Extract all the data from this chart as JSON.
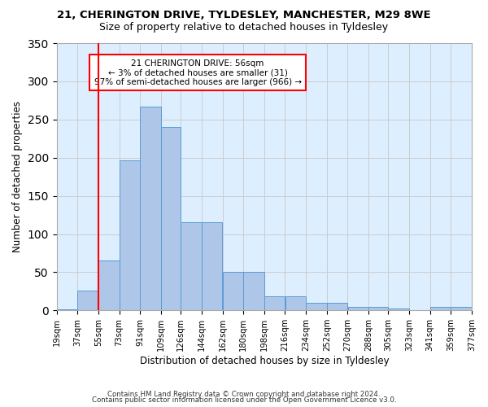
{
  "title1": "21, CHERINGTON DRIVE, TYLDESLEY, MANCHESTER, M29 8WE",
  "title2": "Size of property relative to detached houses in Tyldesley",
  "xlabel": "Distribution of detached houses by size in Tyldesley",
  "ylabel": "Number of detached properties",
  "footer1": "Contains HM Land Registry data © Crown copyright and database right 2024.",
  "footer2": "Contains public sector information licensed under the Open Government Licence v3.0.",
  "annotation_title": "21 CHERINGTON DRIVE: 56sqm",
  "annotation_line2": "← 3% of detached houses are smaller (31)",
  "annotation_line3": "97% of semi-detached houses are larger (966) →",
  "bar_edges": [
    19,
    37,
    55,
    73,
    91,
    109,
    126,
    144,
    162,
    180,
    198,
    216,
    234,
    252,
    270,
    288,
    305,
    323,
    341,
    359,
    377
  ],
  "bar_heights": [
    1,
    26,
    65,
    197,
    267,
    240,
    116,
    116,
    50,
    50,
    18,
    18,
    10,
    10,
    5,
    5,
    2,
    0,
    5,
    5
  ],
  "bar_color": "#aec6e8",
  "bar_edge_color": "#5b9bd5",
  "vline_x": 55,
  "vline_color": "red",
  "ylim": [
    0,
    350
  ],
  "yticks": [
    0,
    50,
    100,
    150,
    200,
    250,
    300,
    350
  ],
  "xtick_labels": [
    "19sqm",
    "37sqm",
    "55sqm",
    "73sqm",
    "91sqm",
    "109sqm",
    "126sqm",
    "144sqm",
    "162sqm",
    "180sqm",
    "198sqm",
    "216sqm",
    "234sqm",
    "252sqm",
    "270sqm",
    "288sqm",
    "305sqm",
    "323sqm",
    "341sqm",
    "359sqm",
    "377sqm"
  ],
  "annotation_box_color": "white",
  "annotation_box_edge": "red",
  "grid_color": "#cccccc",
  "bg_color": "#ddeeff"
}
